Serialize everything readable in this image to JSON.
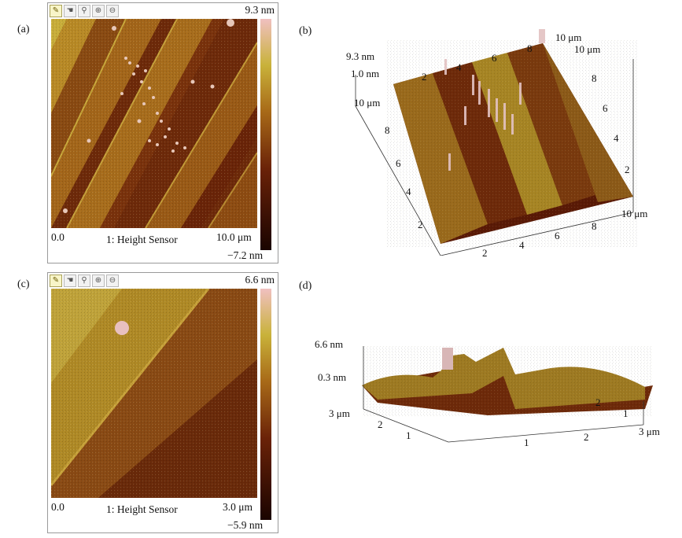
{
  "panels": {
    "a": {
      "label": "(a)",
      "max_label": "9.3 nm",
      "min_label": "−7.2 nm",
      "origin": "0.0",
      "channel": "1: Height Sensor",
      "scan_size": "10.0 μm"
    },
    "b": {
      "label": "(b)",
      "z_top": "9.3 nm",
      "z_mid": "1.0 nm",
      "y_ticks": [
        "2",
        "4",
        "6",
        "8"
      ],
      "y_end": "10 μm",
      "x_ticks": [
        "2",
        "4",
        "6",
        "8"
      ],
      "x_end": "10 μm",
      "back_x_ticks": [
        "2",
        "4",
        "6",
        "8"
      ],
      "back_x_end": "10 μm",
      "right_ticks": [
        "2",
        "4",
        "6",
        "8"
      ],
      "right_end": "10 μm"
    },
    "c": {
      "label": "(c)",
      "max_label": "6.6 nm",
      "min_label": "−5.9 nm",
      "origin": "0.0",
      "channel": "1: Height Sensor",
      "scan_size": "3.0 μm"
    },
    "d": {
      "label": "(d)",
      "z_top": "6.6 nm",
      "z_mid": "0.3 nm",
      "y_end": "3 μm",
      "y_ticks": [
        "2",
        "1"
      ],
      "x_ticks": [
        "1",
        "2"
      ],
      "x_end": "3 μm",
      "right_ticks": [
        "1",
        "2"
      ]
    }
  },
  "toolbar_icons": [
    "pencil-icon",
    "hand-icon",
    "zoom-icon",
    "zoom-in-icon",
    "zoom-out-icon"
  ],
  "colors": {
    "afm_dark": "#3a0a00",
    "afm_mid": "#8a3c0e",
    "afm_light": "#c8a030",
    "afm_highlight": "#e8c6b8"
  }
}
